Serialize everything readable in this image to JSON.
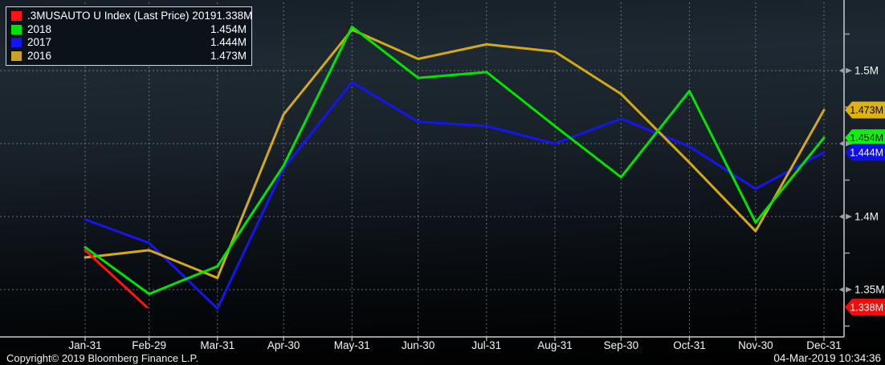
{
  "legend": {
    "rows": [
      {
        "id": "2019",
        "label": ".3MUSAUTO U Index (Last Price) 2019",
        "value": "1.338M",
        "color": "#ff1414"
      },
      {
        "id": "2018",
        "label": "2018",
        "value": "1.454M",
        "color": "#00e400"
      },
      {
        "id": "2017",
        "label": "2017",
        "value": "1.444M",
        "color": "#1515f0"
      },
      {
        "id": "2016",
        "label": "2016",
        "value": "1.473M",
        "color": "#c9a227"
      }
    ]
  },
  "footer": {
    "copyright": "Copyright© 2019 Bloomberg Finance L.P.",
    "timestamp": "04-Mar-2019 10:34:36"
  },
  "chart_data": {
    "type": "line",
    "title": ".3MUSAUTO U Index (Last Price)",
    "legend_position": "top-left",
    "grid": true,
    "categories": [
      "Jan-31",
      "Feb-29",
      "Mar-31",
      "Apr-30",
      "May-31",
      "Jun-30",
      "Jul-31",
      "Aug-31",
      "Sep-30",
      "Oct-31",
      "Nov-30",
      "Dec-31"
    ],
    "y_unit": "M",
    "ylim": [
      1.31,
      1.55
    ],
    "series": [
      {
        "name": "2019",
        "color": "#ff1414",
        "values": [
          1.377,
          1.338
        ],
        "end_day_offset": 28,
        "last_price": "1.338M"
      },
      {
        "name": "2018",
        "color": "#00e400",
        "values": [
          1.379,
          1.347,
          1.366,
          1.435,
          1.53,
          1.495,
          1.499,
          1.462,
          1.427,
          1.486,
          1.396,
          1.454
        ],
        "last_price": "1.454M"
      },
      {
        "name": "2017",
        "color": "#1515f0",
        "values": [
          1.398,
          1.382,
          1.337,
          1.433,
          1.492,
          1.465,
          1.462,
          1.45,
          1.467,
          1.448,
          1.419,
          1.444
        ],
        "last_price": "1.444M"
      },
      {
        "name": "2016",
        "color": "#d4a917",
        "values": [
          1.372,
          1.377,
          1.358,
          1.47,
          1.528,
          1.508,
          1.518,
          1.513,
          1.484,
          1.437,
          1.39,
          1.473
        ],
        "last_price": "1.473M"
      }
    ],
    "y_axis": {
      "tick_labels": [
        {
          "text": "1.5M",
          "value": 1.5
        },
        {
          "text": "1.4M",
          "value": 1.4
        },
        {
          "text": "1.35M",
          "value": 1.35
        }
      ],
      "arrow_tick_values": [
        1.5,
        1.45,
        1.4,
        1.35
      ],
      "gridline_values": [
        1.5,
        1.45,
        1.4,
        1.35
      ],
      "minor_tick_values": [
        1.525,
        1.475,
        1.425,
        1.375,
        1.325
      ]
    },
    "badges": [
      {
        "text": "1.473M",
        "value": 1.473,
        "bg": "#dfb30b",
        "fg": "#000000"
      },
      {
        "text": "1.454M",
        "value": 1.454,
        "bg": "#11ef11",
        "fg": "#000000"
      },
      {
        "text": "1.444M",
        "value": 1.444,
        "bg": "#0f0fe6",
        "fg": "#ffffff"
      },
      {
        "text": "1.338M",
        "value": 1.338,
        "bg": "#f50b0b",
        "fg": "#ffffff"
      }
    ]
  }
}
